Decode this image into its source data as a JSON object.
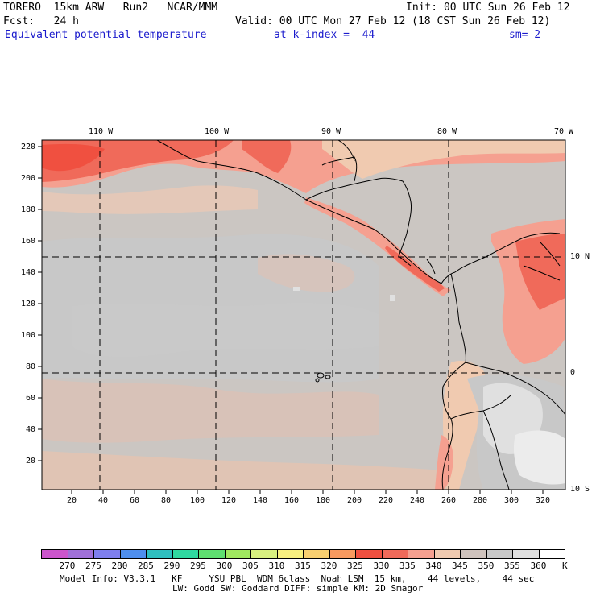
{
  "header": {
    "model": "TORERO  15km ARW   Run2   NCAR/MMM",
    "init": "Init: 00 UTC Sun 26 Feb 12",
    "fcst": "Fcst:   24 h",
    "valid": "Valid: 00 UTC Mon 27 Feb 12 (18 CST Sun 26 Feb 12)",
    "field": "Equivalent potential temperature",
    "level": "at k-index =  44",
    "smooth": "sm= 2"
  },
  "map": {
    "lon_labels": [
      "110 W",
      "100 W",
      "90 W",
      "80 W",
      "70 W"
    ],
    "lat_labels": [
      "10 N",
      "0",
      "10 S"
    ],
    "y_ticks": [
      "220",
      "200",
      "180",
      "160",
      "140",
      "120",
      "100",
      "80",
      "60",
      "40",
      "20"
    ],
    "x_ticks": [
      "20",
      "40",
      "60",
      "80",
      "100",
      "120",
      "140",
      "160",
      "180",
      "200",
      "220",
      "240",
      "260",
      "280",
      "300",
      "320"
    ],
    "grid": "on",
    "grid_style": "dashed"
  },
  "colorbar": {
    "labels": [
      "270",
      "275",
      "280",
      "285",
      "290",
      "295",
      "300",
      "305",
      "310",
      "315",
      "320",
      "325",
      "330",
      "335",
      "340",
      "345",
      "350",
      "355",
      "360"
    ],
    "unit": "K",
    "colors": [
      "#cc55cc",
      "#a070d8",
      "#7f7fee",
      "#4f8fee",
      "#2fbfbf",
      "#2fd8a0",
      "#5fdf70",
      "#a0e860",
      "#d8f080",
      "#f8f080",
      "#f8cf70",
      "#f89a60",
      "#f05040",
      "#f06a5a",
      "#f5a090",
      "#f0cab0",
      "#cfc3bd",
      "#c8c8c8",
      "#e0e0e0",
      "#ffffff"
    ]
  },
  "footer": {
    "line1": "Model Info: V3.3.1   KF     YSU PBL  WDM 6class  Noah LSM  15 km,    44 levels,    44 sec",
    "line2": "LW: Godd SW: Goddard DIFF: simple KM: 2D Smagor"
  }
}
